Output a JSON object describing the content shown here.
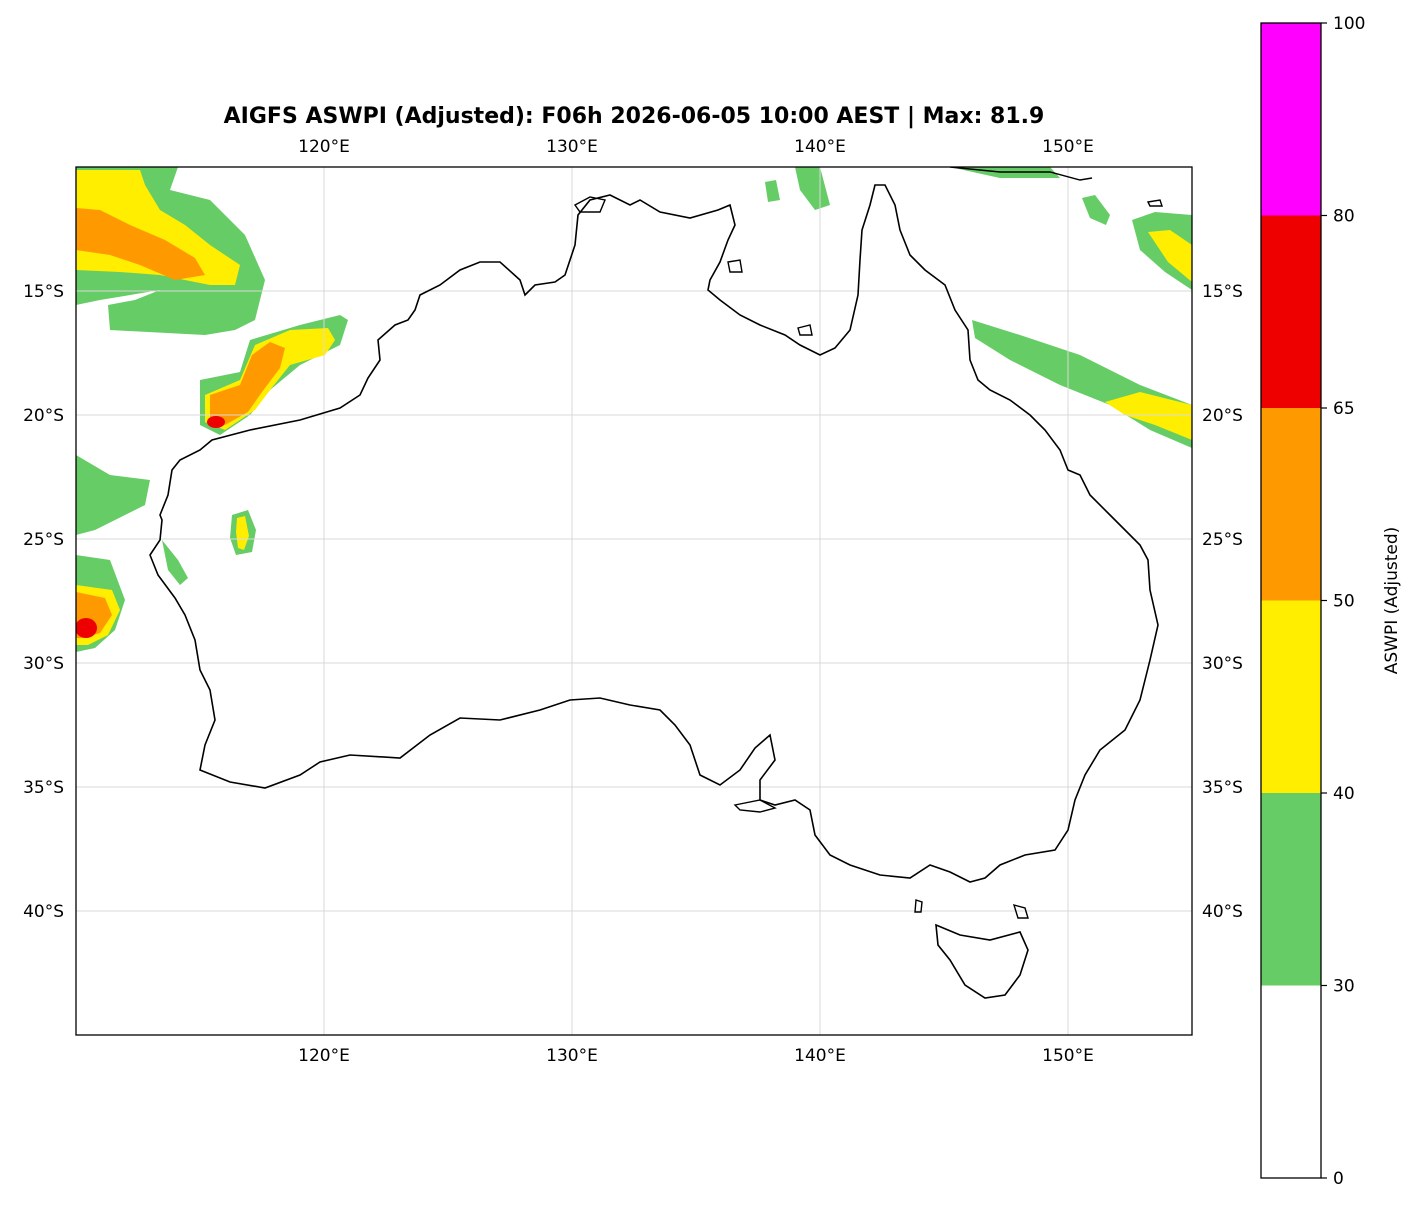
{
  "title": "AIGFS ASWPI (Adjusted): F06h 2026-06-05 10:00 AEST | Max: 81.9",
  "map": {
    "lon_ticks": [
      "120°E",
      "130°E",
      "140°E",
      "150°E"
    ],
    "lat_ticks": [
      "15°S",
      "20°S",
      "25°S",
      "30°S",
      "35°S",
      "40°S"
    ],
    "lon_values": [
      120,
      130,
      140,
      150
    ],
    "lat_values": [
      -15,
      -20,
      -25,
      -30,
      -35,
      -40
    ],
    "extent": {
      "lon_min": 110,
      "lon_max": 155,
      "lat_min": -45,
      "lat_max": -10
    },
    "gridlines": true
  },
  "colorbar": {
    "label": "ASWPI (Adjusted)",
    "tick_labels": [
      "0",
      "30",
      "40",
      "50",
      "65",
      "80",
      "100"
    ],
    "bins": [
      {
        "from": 0,
        "to": 30,
        "color": "#ffffff"
      },
      {
        "from": 30,
        "to": 40,
        "color": "#66cc66"
      },
      {
        "from": 40,
        "to": 50,
        "color": "#ffee00"
      },
      {
        "from": 50,
        "to": 65,
        "color": "#ff9900"
      },
      {
        "from": 65,
        "to": 80,
        "color": "#ee0000"
      },
      {
        "from": 80,
        "to": 100,
        "color": "#ff00ff"
      }
    ]
  },
  "colors": {
    "coast": "#000000",
    "grid": "#d9d9d9"
  }
}
